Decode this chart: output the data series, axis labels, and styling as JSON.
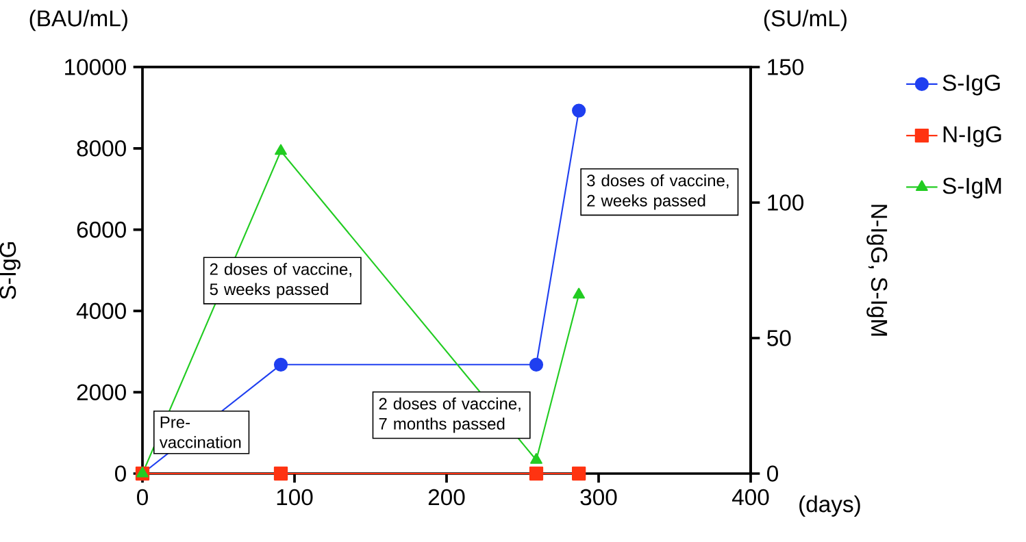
{
  "chart_data": {
    "type": "line",
    "xlabel": "(days)",
    "ylabel": "S-IgG",
    "y2label": "N-IgG, S-IgM",
    "x": [
      0,
      91,
      259,
      287
    ],
    "series": [
      {
        "name": "S-IgG",
        "color": "#1f3ff0",
        "values": [
          0,
          2680,
          2680,
          8930
        ],
        "marker": "circle"
      },
      {
        "name": "N-IgG",
        "color": "#ff3311",
        "values": [
          0,
          0,
          0,
          0
        ],
        "marker": "square",
        "axis": "y2"
      },
      {
        "name": "S-IgM",
        "color": "#22cc22",
        "values": [
          0,
          119,
          5,
          66
        ],
        "marker": "triangle",
        "axis": "y2"
      }
    ],
    "xlim": [
      0,
      400
    ],
    "xticks": [
      0,
      100,
      200,
      300,
      400
    ],
    "ylim": [
      0,
      10000
    ],
    "yticks": [
      0,
      2000,
      4000,
      6000,
      8000,
      10000
    ],
    "y2lim": [
      0,
      150
    ],
    "y2ticks": [
      0,
      50,
      100,
      150
    ],
    "legend": "right",
    "line_style": "solid",
    "grid": false,
    "annotations": [
      "(BAU/mL)",
      "(SU/mL)",
      "Pre-vaccination",
      "2 doses of vaccine, 5 weeks passed",
      "2 doses of vaccine, 7 months passed",
      "3 doses of vaccine, 2 weeks passed"
    ]
  }
}
